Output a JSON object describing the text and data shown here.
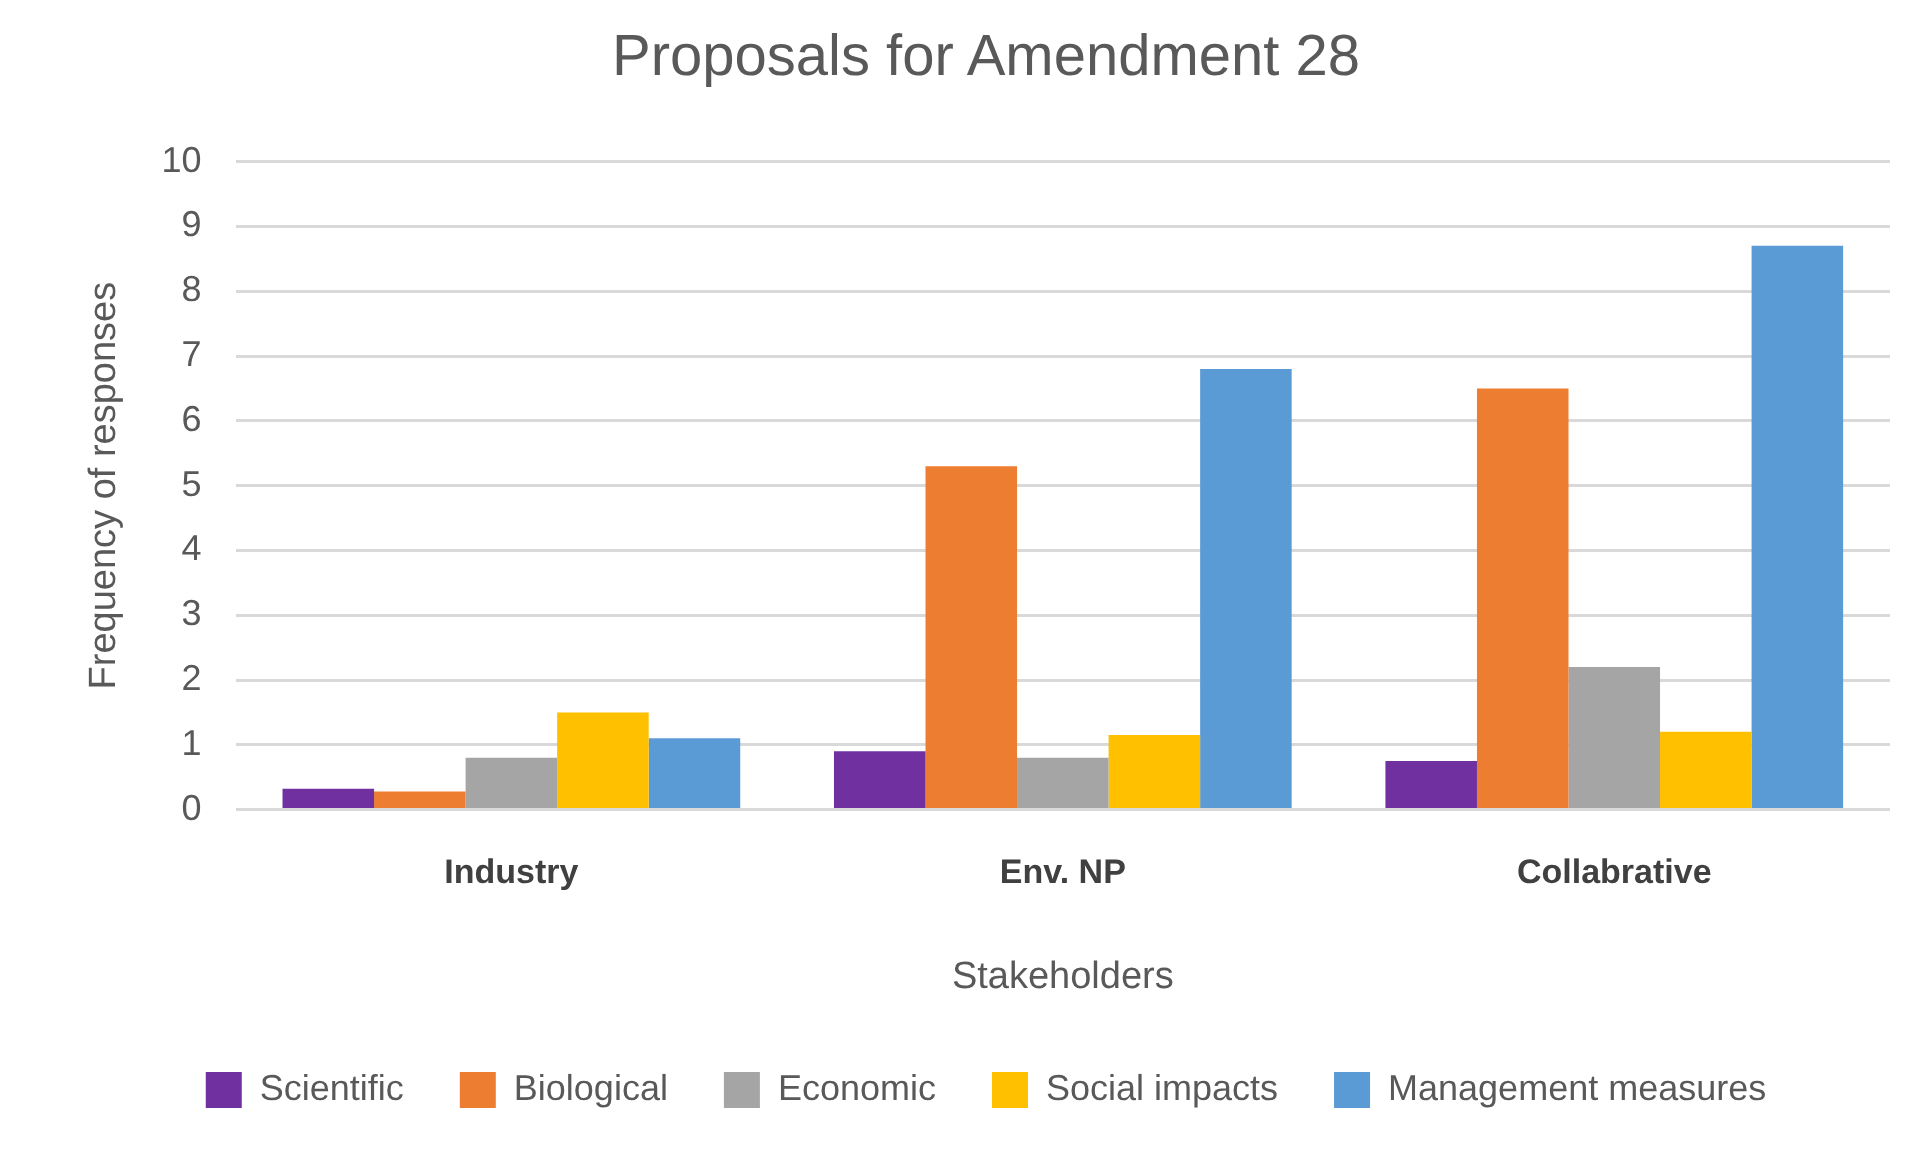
{
  "chart_data": {
    "type": "bar",
    "title": "Proposals for Amendment 28",
    "xlabel": "Stakeholders",
    "ylabel": "Frequency of responses",
    "categories": [
      "Industry",
      "Env. NP",
      "Collabrative"
    ],
    "series": [
      {
        "name": "Scientific",
        "color": "#7030a0",
        "values": [
          0.32,
          0.9,
          0.75
        ]
      },
      {
        "name": "Biological",
        "color": "#ed7d31",
        "values": [
          0.28,
          5.3,
          6.5
        ]
      },
      {
        "name": "Economic",
        "color": "#a5a5a5",
        "values": [
          0.8,
          0.8,
          2.2
        ]
      },
      {
        "name": "Social impacts",
        "color": "#ffc000",
        "values": [
          1.5,
          1.15,
          1.2
        ]
      },
      {
        "name": "Management measures",
        "color": "#5b9bd5",
        "values": [
          1.1,
          6.8,
          8.7
        ]
      }
    ],
    "ylim": [
      0,
      10
    ],
    "yticks": [
      0,
      1,
      2,
      3,
      4,
      5,
      6,
      7,
      8,
      9,
      10
    ],
    "grid": "y",
    "legend": "bottom"
  }
}
